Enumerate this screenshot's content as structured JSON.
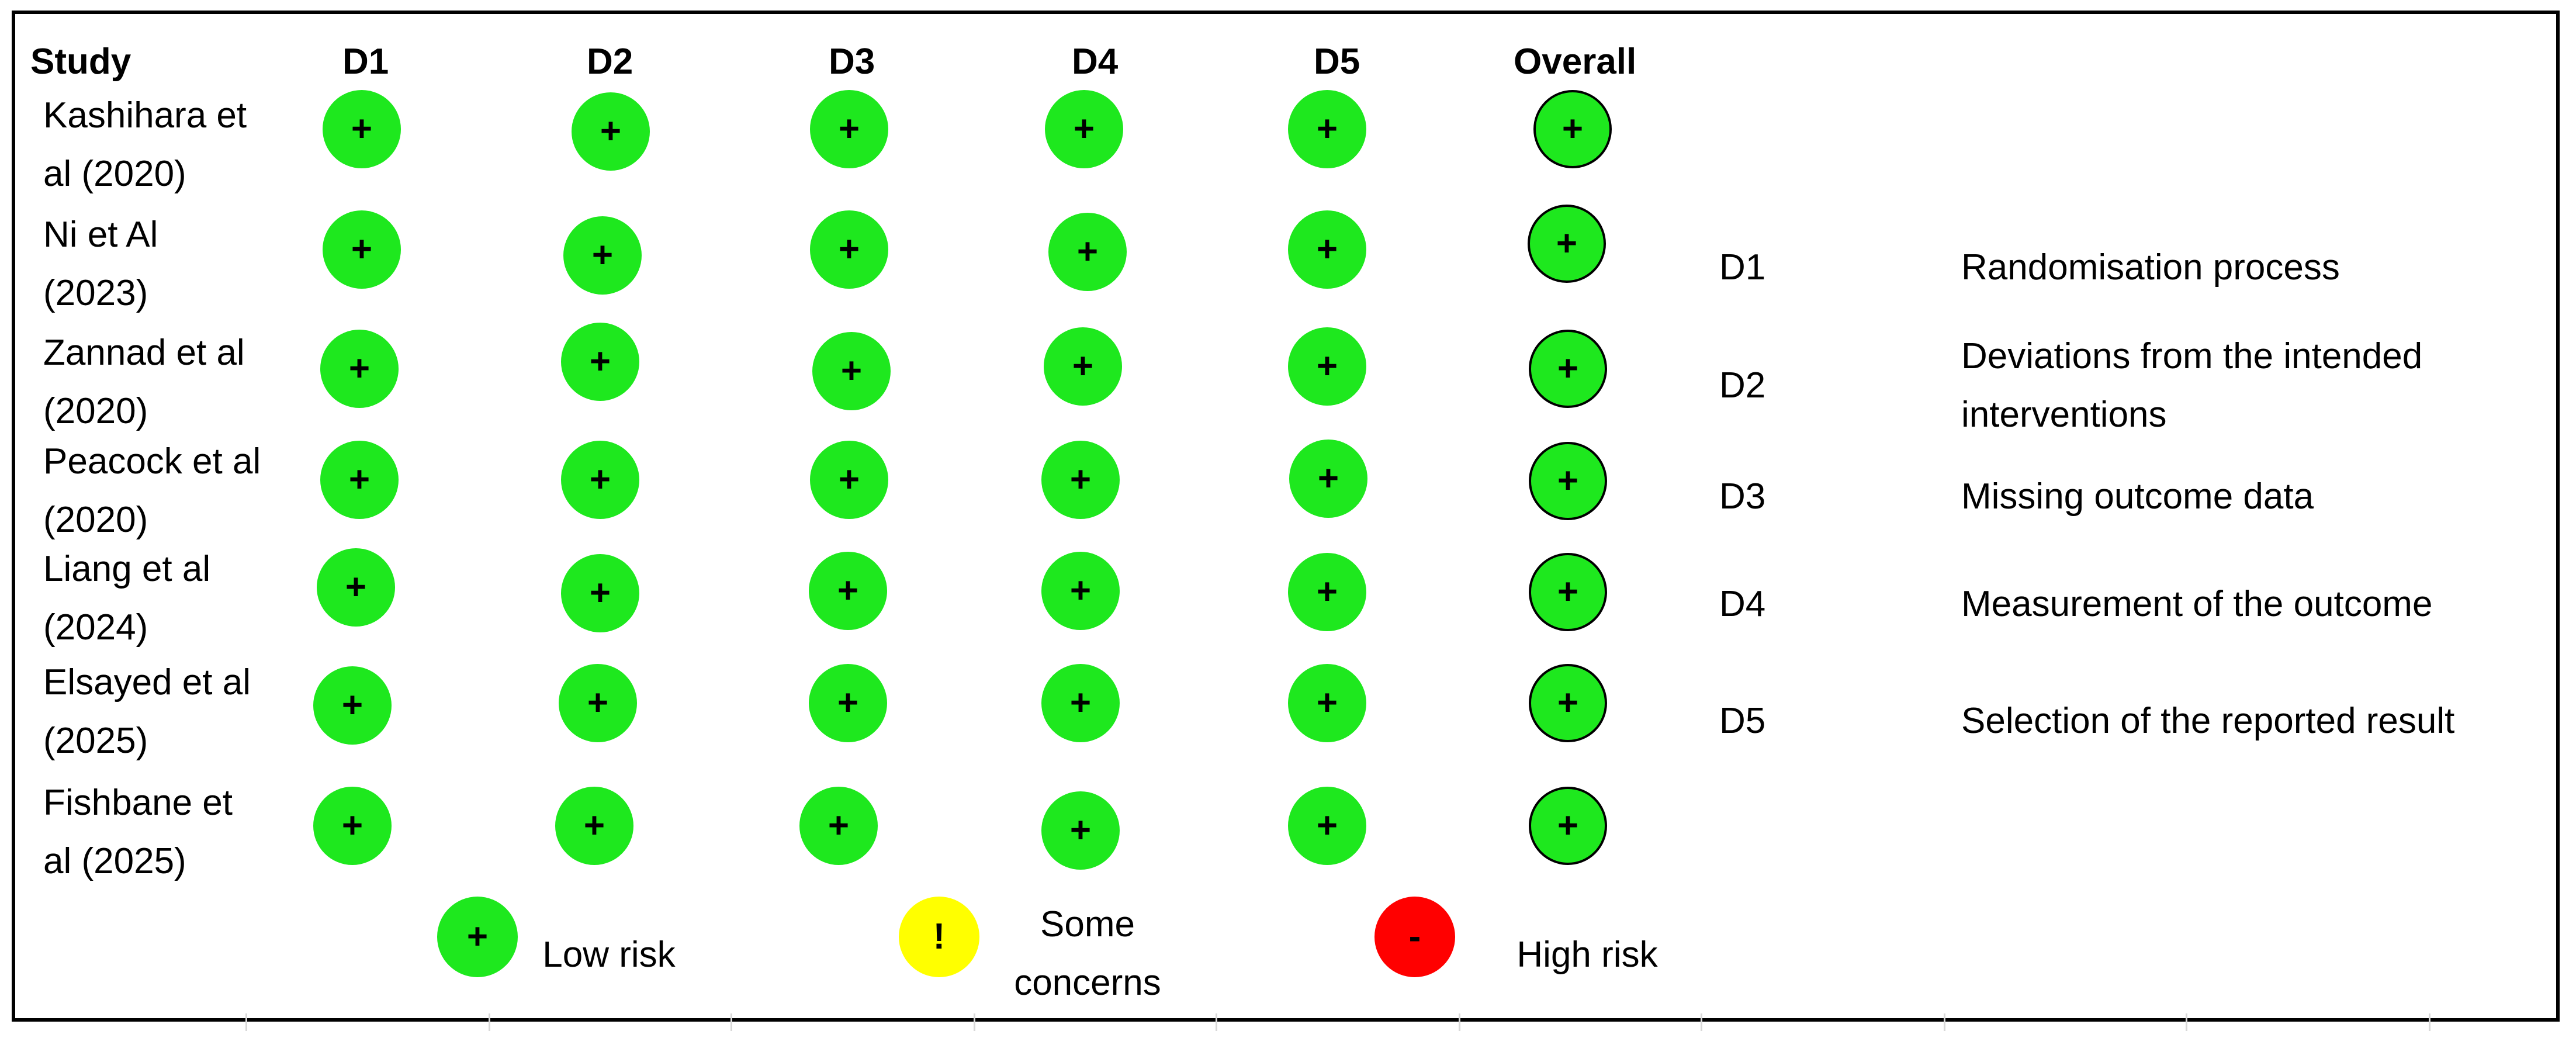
{
  "header": {
    "study": "Study",
    "domains": [
      "D1",
      "D2",
      "D3",
      "D4",
      "D5"
    ],
    "overall": "Overall"
  },
  "studies": [
    {
      "name": "Kashihara et al (2020)",
      "judgements": [
        "+",
        "+",
        "+",
        "+",
        "+"
      ],
      "overall": "+"
    },
    {
      "name": "Ni et Al (2023)",
      "judgements": [
        "+",
        "+",
        "+",
        "+",
        "+"
      ],
      "overall": "+"
    },
    {
      "name": "Zannad et al (2020)",
      "judgements": [
        "+",
        "+",
        "+",
        "+",
        "+"
      ],
      "overall": "+"
    },
    {
      "name": "Peacock et al (2020)",
      "judgements": [
        "+",
        "+",
        "+",
        "+",
        "+"
      ],
      "overall": "+"
    },
    {
      "name": "Liang et al (2024)",
      "judgements": [
        "+",
        "+",
        "+",
        "+",
        "+"
      ],
      "overall": "+"
    },
    {
      "name": "Elsayed et al (2025)",
      "judgements": [
        "+",
        "+",
        "+",
        "+",
        "+"
      ],
      "overall": "+"
    },
    {
      "name": "Fishbane et al (2025)",
      "judgements": [
        "+",
        "+",
        "+",
        "+",
        "+"
      ],
      "overall": "+"
    }
  ],
  "domain_legend": [
    {
      "code": "D1",
      "text": "Randomisation process"
    },
    {
      "code": "D2",
      "text": "Deviations from the intended interventions"
    },
    {
      "code": "D3",
      "text": "Missing outcome data"
    },
    {
      "code": "D4",
      "text": "Measurement of the outcome"
    },
    {
      "code": "D5",
      "text": "Selection of the reported result"
    }
  ],
  "risk_key": [
    {
      "symbol": "+",
      "label": "Low risk",
      "color": "#1ee81e"
    },
    {
      "symbol": "!",
      "label": "Some concerns",
      "color": "#ffff00"
    },
    {
      "symbol": "-",
      "label": "High risk",
      "color": "#ff0000"
    }
  ]
}
